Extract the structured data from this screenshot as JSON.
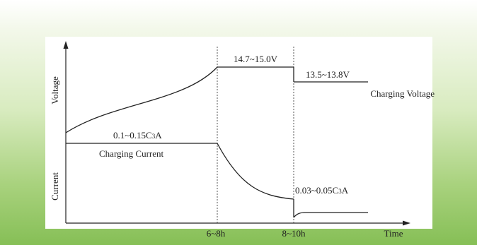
{
  "chart_data": {
    "type": "line",
    "xlabel": "Time",
    "ylabel_top": "Voltage",
    "ylabel_bottom": "Current",
    "x_ticks": [
      "6~8h",
      "8~10h"
    ],
    "series": [
      {
        "name": "Charging Voltage",
        "stages": [
          {
            "stage": 1,
            "shape": "rising curve"
          },
          {
            "stage": 2,
            "label": "14.7~15.0V",
            "shape": "constant"
          },
          {
            "stage": 3,
            "label": "13.5~13.8V",
            "shape": "constant"
          }
        ]
      },
      {
        "name": "Charging Current",
        "stages": [
          {
            "stage": 1,
            "label_main": "0.1~0.15C",
            "label_sub": "3",
            "label_unit": "A",
            "shape": "constant"
          },
          {
            "stage": 2,
            "shape": "decaying curve"
          },
          {
            "stage": 3,
            "label_main": "0.03~0.05C",
            "label_sub": "3",
            "label_unit": "A",
            "shape": "low constant"
          }
        ]
      }
    ]
  }
}
